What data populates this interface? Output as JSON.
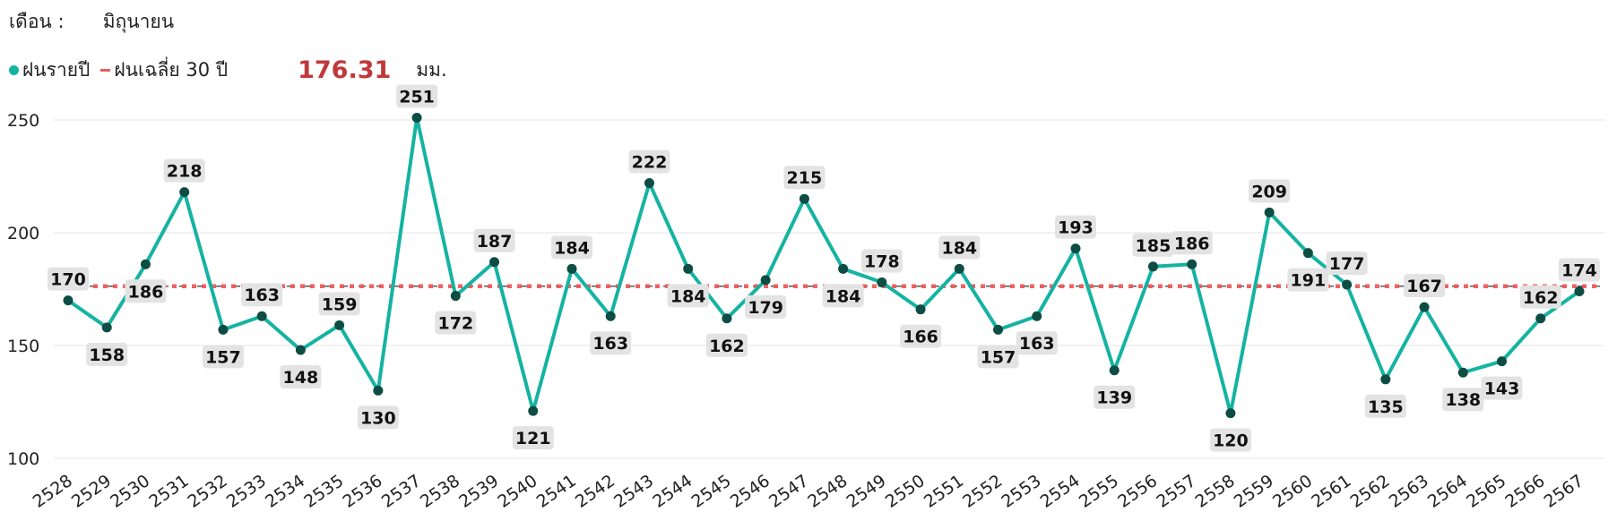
{
  "header": {
    "month_label": "เดือน :",
    "month_value": "มิถุนายน"
  },
  "legend": {
    "annual_label": "ฝนรายปี",
    "avg_label": "ฝนเฉลี่ย 30 ปี",
    "avg_value": "176.31",
    "unit": "มม."
  },
  "colors": {
    "line": "#14b3a2",
    "marker": "#0d4d44",
    "average": "#f05a5a",
    "avg_text": "#c0393b",
    "label_bg": "#e3e3e3",
    "grid": "#e6e6e6"
  },
  "chart_data": {
    "type": "line",
    "title": "",
    "xlabel": "",
    "ylabel": "",
    "categories": [
      "2528",
      "2529",
      "2530",
      "2531",
      "2532",
      "2533",
      "2534",
      "2535",
      "2536",
      "2537",
      "2538",
      "2539",
      "2540",
      "2541",
      "2542",
      "2543",
      "2544",
      "2545",
      "2546",
      "2547",
      "2548",
      "2549",
      "2550",
      "2551",
      "2552",
      "2553",
      "2554",
      "2555",
      "2556",
      "2557",
      "2558",
      "2559",
      "2560",
      "2561",
      "2562",
      "2563",
      "2564",
      "2565",
      "2566",
      "2567"
    ],
    "series": [
      {
        "name": "ฝนรายปี",
        "values": [
          170,
          158,
          186,
          218,
          157,
          163,
          148,
          159,
          130,
          251,
          172,
          187,
          121,
          184,
          163,
          222,
          184,
          162,
          179,
          215,
          184,
          178,
          166,
          184,
          157,
          163,
          193,
          139,
          185,
          186,
          120,
          209,
          191,
          177,
          135,
          167,
          138,
          143,
          162,
          174
        ]
      }
    ],
    "average": 176.31,
    "yticks": [
      100,
      150,
      200,
      250
    ],
    "ylim": [
      100,
      250
    ],
    "grid": true,
    "legend_position": "top-left"
  }
}
